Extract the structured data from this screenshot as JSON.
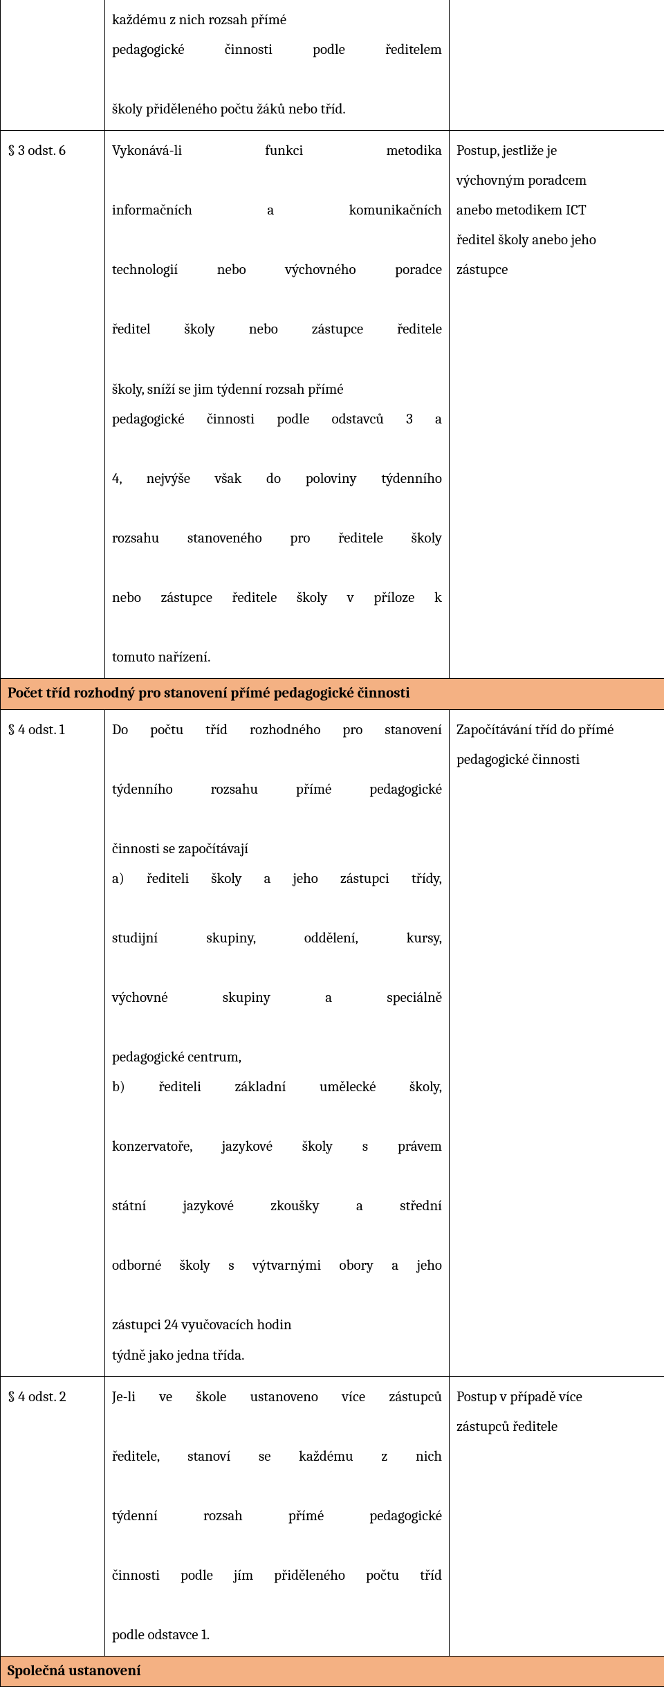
{
  "colors": {
    "header_bg": "#f4b183",
    "border": "#000000",
    "text": "#000000",
    "page_bg": "#ffffff"
  },
  "rows": {
    "r1": {
      "col1": "",
      "col2_l1": "každému z nich rozsah přímé",
      "col2_l2": "pedagogické činnosti podle ředitelem",
      "col2_l3": "školy přiděleného počtu žáků nebo tříd.",
      "col3": ""
    },
    "r2": {
      "col1": "§ 3 odst. 6",
      "col2_l1": "Vykonává-li funkci metodika",
      "col2_l2": "informačních a komunikačních",
      "col2_l3": "technologií nebo výchovného poradce",
      "col2_l4": "ředitel školy nebo zástupce ředitele",
      "col2_l5": "školy, sníží se jim týdenní rozsah přímé",
      "col2_l6": "pedagogické činnosti podle odstavců 3 a",
      "col2_l7": "4, nejvýše však do poloviny týdenního",
      "col2_l8": "rozsahu stanoveného pro ředitele školy",
      "col2_l9": "nebo zástupce ředitele školy v příloze k",
      "col2_l10": "tomuto nařízení.",
      "col3_l1": "Postup, jestliže je",
      "col3_l2": "výchovným poradcem",
      "col3_l3": "anebo metodikem ICT",
      "col3_l4": "ředitel školy anebo jeho",
      "col3_l5": "zástupce"
    },
    "h1": {
      "text": "Počet tříd rozhodný pro stanovení přímé pedagogické činnosti"
    },
    "r3": {
      "col1": "§ 4 odst. 1",
      "col2_l1": "Do počtu tříd rozhodného pro stanovení",
      "col2_l2": "týdenního rozsahu přímé pedagogické",
      "col2_l3": "činnosti se započítávají",
      "col2_l4": "a) řediteli školy a jeho zástupci třídy,",
      "col2_l5": "studijní skupiny, oddělení, kursy,",
      "col2_l6": "výchovné skupiny a speciálně",
      "col2_l7": "pedagogické centrum,",
      "col2_l8": "b) řediteli základní umělecké školy,",
      "col2_l9": "konzervatoře, jazykové školy s právem",
      "col2_l10": "státní jazykové zkoušky a střední",
      "col2_l11": "odborné školy s výtvarnými obory a jeho",
      "col2_l12": "zástupci 24 vyučovacích hodin",
      "col2_l13": "týdně jako jedna třída.",
      "col3_l1": "Započítávání tříd do přímé",
      "col3_l2": "pedagogické činnosti"
    },
    "r4": {
      "col1": "§ 4 odst. 2",
      "col2_l1": "Je-li ve škole ustanoveno více zástupců",
      "col2_l2": "ředitele, stanoví se každému z nich",
      "col2_l3": "týdenní rozsah přímé pedagogické",
      "col2_l4": "činnosti podle jím přiděleného počtu tříd",
      "col2_l5": "podle odstavce 1.",
      "col3_l1": "Postup v případě více",
      "col3_l2": "zástupců ředitele"
    },
    "h2": {
      "text": "Společná ustanovení"
    }
  }
}
